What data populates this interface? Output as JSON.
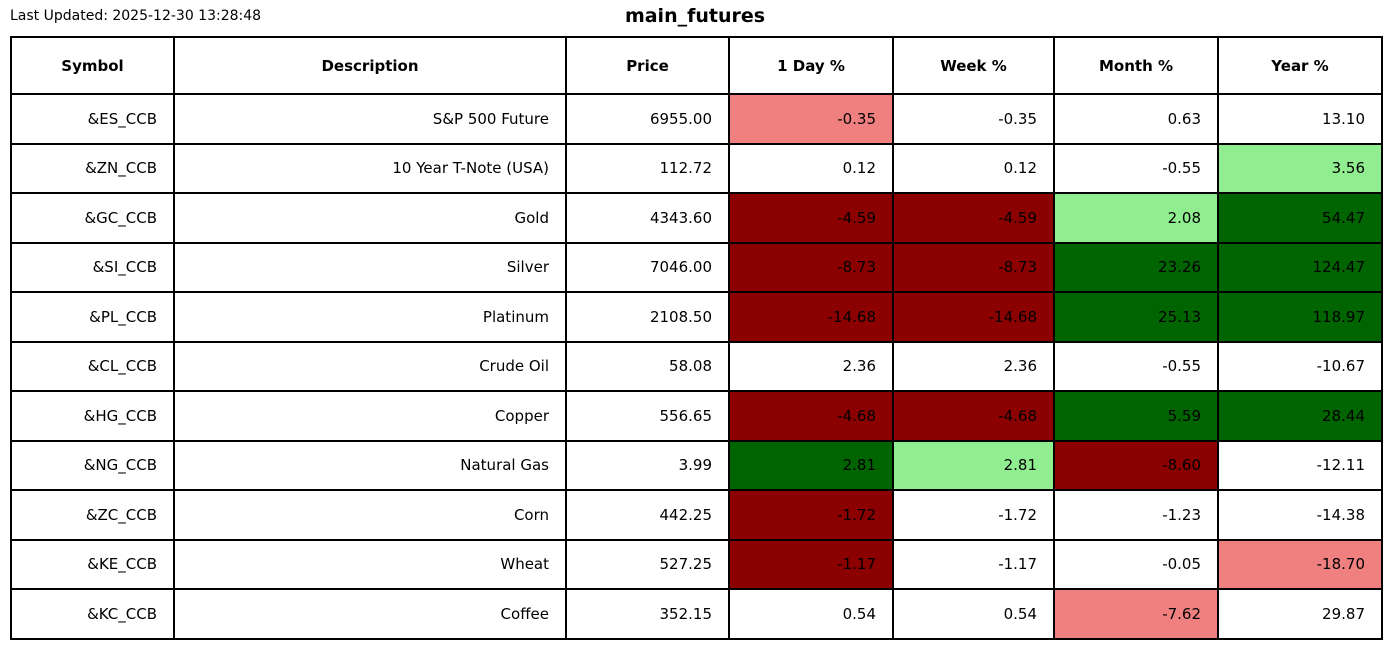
{
  "header": {
    "last_updated": "Last Updated: 2025-12-30 13:28:48",
    "title": "main_futures"
  },
  "colors": {
    "neutral": "#ffffff",
    "down": "#f08080",
    "strong_down": "#8b0000",
    "up": "#90ee90",
    "strong_up": "#006400"
  },
  "table": {
    "columns": [
      "Symbol",
      "Description",
      "Price",
      "1 Day %",
      "Week %",
      "Month %",
      "Year %"
    ],
    "rows": [
      {
        "symbol": "&ES_CCB",
        "description": "S&P 500 Future",
        "price": "6955.00",
        "day": "-0.35",
        "week": "-0.35",
        "month": "0.63",
        "year": "13.10",
        "bg": {
          "day": "down",
          "week": "neutral",
          "month": "neutral",
          "year": "neutral"
        }
      },
      {
        "symbol": "&ZN_CCB",
        "description": "10 Year T-Note (USA)",
        "price": "112.72",
        "day": "0.12",
        "week": "0.12",
        "month": "-0.55",
        "year": "3.56",
        "bg": {
          "day": "neutral",
          "week": "neutral",
          "month": "neutral",
          "year": "up"
        }
      },
      {
        "symbol": "&GC_CCB",
        "description": "Gold",
        "price": "4343.60",
        "day": "-4.59",
        "week": "-4.59",
        "month": "2.08",
        "year": "54.47",
        "bg": {
          "day": "strong_down",
          "week": "strong_down",
          "month": "up",
          "year": "strong_up"
        }
      },
      {
        "symbol": "&SI_CCB",
        "description": "Silver",
        "price": "7046.00",
        "day": "-8.73",
        "week": "-8.73",
        "month": "23.26",
        "year": "124.47",
        "bg": {
          "day": "strong_down",
          "week": "strong_down",
          "month": "strong_up",
          "year": "strong_up"
        }
      },
      {
        "symbol": "&PL_CCB",
        "description": "Platinum",
        "price": "2108.50",
        "day": "-14.68",
        "week": "-14.68",
        "month": "25.13",
        "year": "118.97",
        "bg": {
          "day": "strong_down",
          "week": "strong_down",
          "month": "strong_up",
          "year": "strong_up"
        }
      },
      {
        "symbol": "&CL_CCB",
        "description": "Crude Oil",
        "price": "58.08",
        "day": "2.36",
        "week": "2.36",
        "month": "-0.55",
        "year": "-10.67",
        "bg": {
          "day": "neutral",
          "week": "neutral",
          "month": "neutral",
          "year": "neutral"
        }
      },
      {
        "symbol": "&HG_CCB",
        "description": "Copper",
        "price": "556.65",
        "day": "-4.68",
        "week": "-4.68",
        "month": "5.59",
        "year": "28.44",
        "bg": {
          "day": "strong_down",
          "week": "strong_down",
          "month": "strong_up",
          "year": "strong_up"
        }
      },
      {
        "symbol": "&NG_CCB",
        "description": "Natural Gas",
        "price": "3.99",
        "day": "2.81",
        "week": "2.81",
        "month": "-8.60",
        "year": "-12.11",
        "bg": {
          "day": "strong_up",
          "week": "up",
          "month": "strong_down",
          "year": "neutral"
        }
      },
      {
        "symbol": "&ZC_CCB",
        "description": "Corn",
        "price": "442.25",
        "day": "-1.72",
        "week": "-1.72",
        "month": "-1.23",
        "year": "-14.38",
        "bg": {
          "day": "strong_down",
          "week": "neutral",
          "month": "neutral",
          "year": "neutral"
        }
      },
      {
        "symbol": "&KE_CCB",
        "description": "Wheat",
        "price": "527.25",
        "day": "-1.17",
        "week": "-1.17",
        "month": "-0.05",
        "year": "-18.70",
        "bg": {
          "day": "strong_down",
          "week": "neutral",
          "month": "neutral",
          "year": "down"
        }
      },
      {
        "symbol": "&KC_CCB",
        "description": "Coffee",
        "price": "352.15",
        "day": "0.54",
        "week": "0.54",
        "month": "-7.62",
        "year": "29.87",
        "bg": {
          "day": "neutral",
          "week": "neutral",
          "month": "down",
          "year": "neutral"
        }
      }
    ]
  },
  "chart_data": {
    "type": "table",
    "title": "main_futures",
    "columns": [
      "Symbol",
      "Description",
      "Price",
      "1 Day %",
      "Week %",
      "Month %",
      "Year %"
    ],
    "rows": [
      [
        "&ES_CCB",
        "S&P 500 Future",
        6955.0,
        -0.35,
        -0.35,
        0.63,
        13.1
      ],
      [
        "&ZN_CCB",
        "10 Year T-Note (USA)",
        112.72,
        0.12,
        0.12,
        -0.55,
        3.56
      ],
      [
        "&GC_CCB",
        "Gold",
        4343.6,
        -4.59,
        -4.59,
        2.08,
        54.47
      ],
      [
        "&SI_CCB",
        "Silver",
        7046.0,
        -8.73,
        -8.73,
        23.26,
        124.47
      ],
      [
        "&PL_CCB",
        "Platinum",
        2108.5,
        -14.68,
        -14.68,
        25.13,
        118.97
      ],
      [
        "&CL_CCB",
        "Crude Oil",
        58.08,
        2.36,
        2.36,
        -0.55,
        -10.67
      ],
      [
        "&HG_CCB",
        "Copper",
        556.65,
        -4.68,
        -4.68,
        5.59,
        28.44
      ],
      [
        "&NG_CCB",
        "Natural Gas",
        3.99,
        2.81,
        2.81,
        -8.6,
        -12.11
      ],
      [
        "&ZC_CCB",
        "Corn",
        442.25,
        -1.72,
        -1.72,
        -1.23,
        -14.38
      ],
      [
        "&KE_CCB",
        "Wheat",
        527.25,
        -1.17,
        -1.17,
        -0.05,
        -18.7
      ],
      [
        "&KC_CCB",
        "Coffee",
        352.15,
        0.54,
        0.54,
        -7.62,
        29.87
      ]
    ]
  }
}
